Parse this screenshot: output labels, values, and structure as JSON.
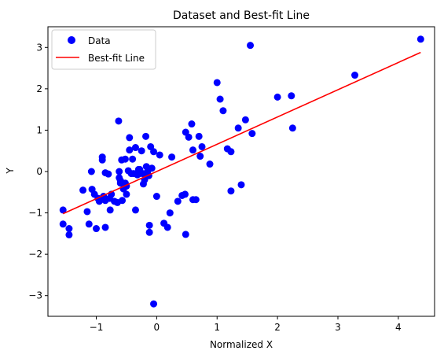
{
  "chart_data": {
    "type": "scatter",
    "title": "Dataset and Best-fit Line",
    "xlabel": "Normalized X",
    "ylabel": "Y",
    "xlim": [
      -1.8,
      4.6
    ],
    "ylim": [
      -3.5,
      3.5
    ],
    "x_ticks": [
      {
        "value": -1,
        "label": "−1"
      },
      {
        "value": 0,
        "label": "0"
      },
      {
        "value": 1,
        "label": "1"
      },
      {
        "value": 2,
        "label": "2"
      },
      {
        "value": 3,
        "label": "3"
      },
      {
        "value": 4,
        "label": "4"
      }
    ],
    "y_ticks": [
      {
        "value": -3,
        "label": "−3"
      },
      {
        "value": -2,
        "label": "−2"
      },
      {
        "value": -1,
        "label": "−1"
      },
      {
        "value": 0,
        "label": "0"
      },
      {
        "value": 1,
        "label": "1"
      },
      {
        "value": 2,
        "label": "2"
      },
      {
        "value": 3,
        "label": "3"
      }
    ],
    "grid": false,
    "legend_position": "upper-left",
    "series": [
      {
        "name": "Data",
        "kind": "scatter",
        "color": "#0000ff",
        "points": [
          [
            -1.55,
            -0.93
          ],
          [
            -1.55,
            -1.27
          ],
          [
            -1.45,
            -1.38
          ],
          [
            -1.45,
            -1.53
          ],
          [
            -1.22,
            -0.45
          ],
          [
            -1.15,
            -0.97
          ],
          [
            -1.12,
            -1.27
          ],
          [
            -1.08,
            0.0
          ],
          [
            -1.07,
            -0.43
          ],
          [
            -1.03,
            -0.55
          ],
          [
            -1.0,
            -1.38
          ],
          [
            -0.97,
            -0.65
          ],
          [
            -0.95,
            -0.72
          ],
          [
            -0.9,
            0.35
          ],
          [
            -0.9,
            0.28
          ],
          [
            -0.88,
            -0.6
          ],
          [
            -0.85,
            -0.03
          ],
          [
            -0.85,
            -0.7
          ],
          [
            -0.85,
            -1.35
          ],
          [
            -0.8,
            -0.06
          ],
          [
            -0.78,
            -0.65
          ],
          [
            -0.77,
            -0.93
          ],
          [
            -0.75,
            -0.55
          ],
          [
            -0.7,
            -0.72
          ],
          [
            -0.65,
            -0.75
          ],
          [
            -0.63,
            1.22
          ],
          [
            -0.62,
            0.0
          ],
          [
            -0.62,
            -0.15
          ],
          [
            -0.6,
            -0.22
          ],
          [
            -0.6,
            -0.28
          ],
          [
            -0.58,
            0.28
          ],
          [
            -0.57,
            -0.7
          ],
          [
            -0.55,
            -0.42
          ],
          [
            -0.52,
            -0.28
          ],
          [
            -0.52,
            0.3
          ],
          [
            -0.5,
            -0.35
          ],
          [
            -0.5,
            -0.55
          ],
          [
            -0.47,
            0.02
          ],
          [
            -0.45,
            0.52
          ],
          [
            -0.45,
            0.82
          ],
          [
            -0.42,
            -0.05
          ],
          [
            -0.4,
            0.3
          ],
          [
            -0.38,
            -0.05
          ],
          [
            -0.35,
            0.58
          ],
          [
            -0.35,
            -0.93
          ],
          [
            -0.32,
            -0.08
          ],
          [
            -0.3,
            0.05
          ],
          [
            -0.28,
            0.05
          ],
          [
            -0.28,
            -0.05
          ],
          [
            -0.25,
            0.5
          ],
          [
            -0.23,
            -0.05
          ],
          [
            -0.22,
            -0.3
          ],
          [
            -0.2,
            -0.2
          ],
          [
            -0.18,
            0.85
          ],
          [
            -0.17,
            0.12
          ],
          [
            -0.15,
            0.0
          ],
          [
            -0.13,
            -0.1
          ],
          [
            -0.12,
            -1.3
          ],
          [
            -0.12,
            -1.47
          ],
          [
            -0.1,
            0.6
          ],
          [
            -0.08,
            0.08
          ],
          [
            -0.05,
            0.48
          ],
          [
            -0.05,
            -3.2
          ],
          [
            0.0,
            -0.6
          ],
          [
            0.05,
            0.4
          ],
          [
            0.12,
            -1.25
          ],
          [
            0.18,
            -1.35
          ],
          [
            0.22,
            -1.0
          ],
          [
            0.25,
            0.35
          ],
          [
            0.35,
            -0.72
          ],
          [
            0.42,
            -0.58
          ],
          [
            0.47,
            -0.55
          ],
          [
            0.48,
            0.95
          ],
          [
            0.48,
            -1.52
          ],
          [
            0.53,
            0.83
          ],
          [
            0.58,
            1.15
          ],
          [
            0.6,
            0.52
          ],
          [
            0.6,
            -0.68
          ],
          [
            0.65,
            -0.68
          ],
          [
            0.7,
            0.85
          ],
          [
            0.72,
            0.37
          ],
          [
            0.75,
            0.6
          ],
          [
            0.88,
            0.18
          ],
          [
            1.0,
            2.15
          ],
          [
            1.05,
            1.75
          ],
          [
            1.1,
            1.47
          ],
          [
            1.17,
            0.55
          ],
          [
            1.23,
            0.48
          ],
          [
            1.23,
            -0.47
          ],
          [
            1.35,
            1.05
          ],
          [
            1.4,
            -0.32
          ],
          [
            1.47,
            1.25
          ],
          [
            1.55,
            3.05
          ],
          [
            1.58,
            0.92
          ],
          [
            2.0,
            1.8
          ],
          [
            2.23,
            1.83
          ],
          [
            2.25,
            1.05
          ],
          [
            3.28,
            2.33
          ],
          [
            4.37,
            3.2
          ]
        ]
      },
      {
        "name": "Best-fit Line",
        "kind": "line",
        "color": "#ff0000",
        "points": [
          [
            -1.55,
            -1.02
          ],
          [
            4.37,
            2.88
          ]
        ]
      }
    ]
  }
}
